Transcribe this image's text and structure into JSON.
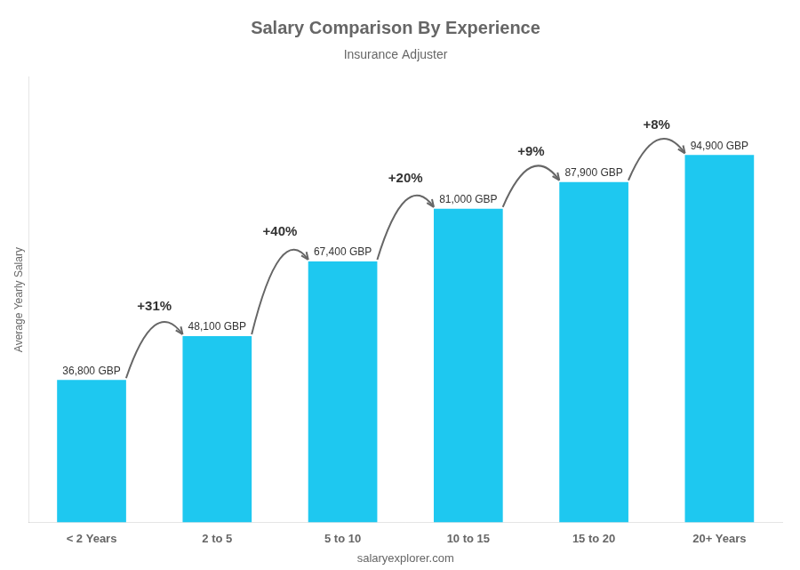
{
  "chart_data": {
    "type": "bar",
    "title": "Salary Comparison By Experience",
    "subtitle": "Insurance Adjuster",
    "ylabel": "Average Yearly Salary",
    "footer": "salaryexplorer.com",
    "categories": [
      "< 2 Years",
      "2 to 5",
      "5 to 10",
      "10 to 15",
      "15 to 20",
      "20+ Years"
    ],
    "values": [
      36800,
      48100,
      67400,
      81000,
      87900,
      94900
    ],
    "value_labels": [
      "36,800 GBP",
      "48,100 GBP",
      "67,400 GBP",
      "81,000 GBP",
      "87,900 GBP",
      "94,900 GBP"
    ],
    "data_labels": true,
    "annotations": [
      "+31%",
      "+40%",
      "+20%",
      "+9%",
      "+8%"
    ],
    "color": "#1EC8F0",
    "ylim": [
      0,
      115000
    ],
    "grid": false,
    "tick_labels": "x"
  }
}
